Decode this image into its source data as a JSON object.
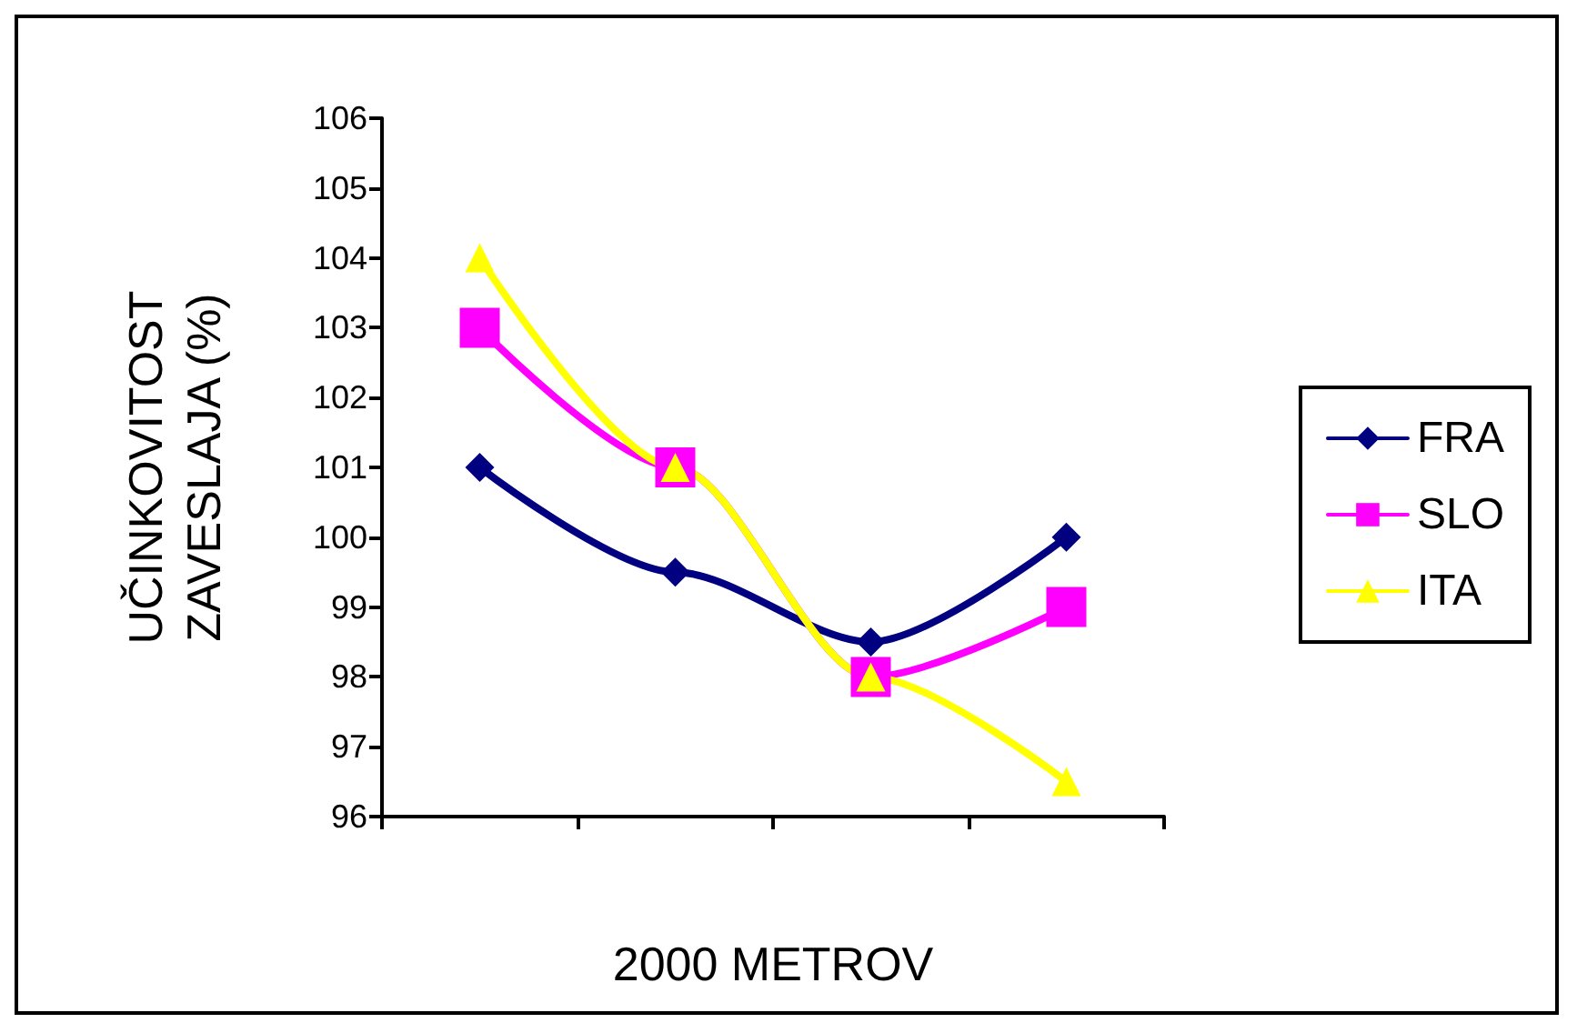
{
  "chart_data": {
    "type": "line",
    "xlabel": "2000 METROV",
    "ylabel": "UČINKOVITOST\nZAVESLAJA (%)",
    "categories": [
      null,
      null,
      null,
      null
    ],
    "series": [
      {
        "name": "FRA",
        "color": "#000080",
        "marker": "diamond",
        "values": [
          101,
          99.5,
          98.5,
          100
        ]
      },
      {
        "name": "SLO",
        "color": "#ff00ff",
        "marker": "square",
        "values": [
          103,
          101,
          98,
          99
        ]
      },
      {
        "name": "ITA",
        "color": "#ffff00",
        "marker": "triangle",
        "values": [
          104,
          101,
          98,
          96.5
        ]
      }
    ],
    "ylim": [
      96,
      106
    ],
    "yticks": [
      96,
      97,
      98,
      99,
      100,
      101,
      102,
      103,
      104,
      105,
      106
    ],
    "grid": false,
    "legend": "right",
    "line_style": "solid"
  }
}
